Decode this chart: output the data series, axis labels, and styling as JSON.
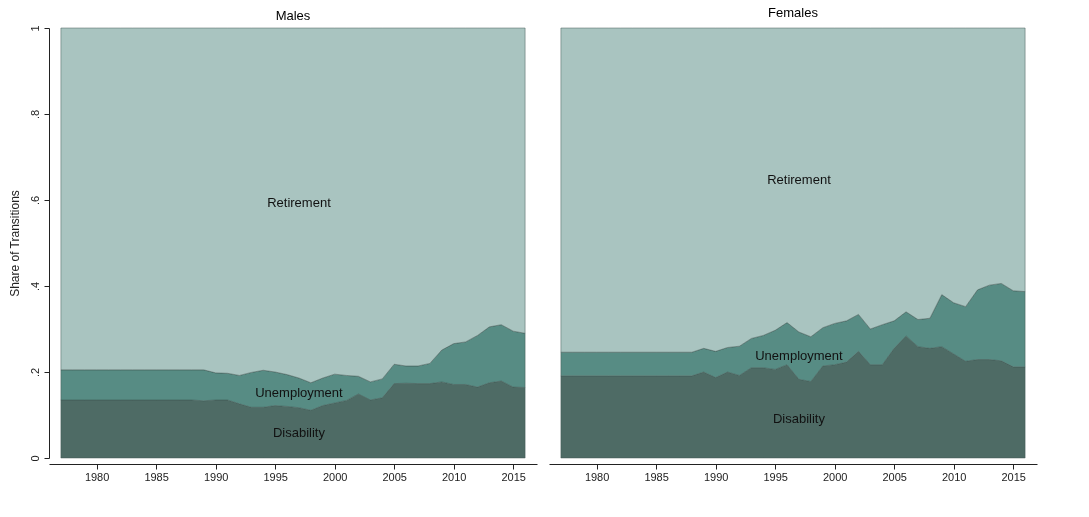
{
  "chart_data": [
    {
      "type": "area",
      "title": "Males",
      "ylabel": "Share of Transitions",
      "stacked": true,
      "legend": false,
      "tick_labels": "xy",
      "x": [
        1977,
        1978,
        1979,
        1980,
        1981,
        1982,
        1983,
        1984,
        1985,
        1986,
        1987,
        1988,
        1989,
        1990,
        1991,
        1992,
        1993,
        1994,
        1995,
        1996,
        1997,
        1998,
        1999,
        2000,
        2001,
        2002,
        2003,
        2004,
        2005,
        2006,
        2007,
        2008,
        2009,
        2010,
        2011,
        2012,
        2013,
        2014,
        2015,
        2016
      ],
      "xlim": [
        1976,
        2017
      ],
      "xticks": [
        1980,
        1985,
        1990,
        1995,
        2000,
        2005,
        2010,
        2015
      ],
      "ylim": [
        0,
        1
      ],
      "yticks": [
        0,
        {
          "value": 0.2,
          "label": ".2"
        },
        {
          "value": 0.4,
          "label": ".4"
        },
        {
          "value": 0.6,
          "label": ".6"
        },
        {
          "value": 0.8,
          "label": ".8"
        },
        1
      ],
      "series": [
        {
          "name": "Disability",
          "color": "#4e6b65",
          "values": [
            0.135,
            0.135,
            0.135,
            0.135,
            0.135,
            0.135,
            0.135,
            0.135,
            0.135,
            0.135,
            0.135,
            0.135,
            0.133,
            0.135,
            0.135,
            0.126,
            0.118,
            0.118,
            0.122,
            0.12,
            0.117,
            0.111,
            0.122,
            0.128,
            0.134,
            0.149,
            0.135,
            0.14,
            0.173,
            0.174,
            0.173,
            0.173,
            0.177,
            0.171,
            0.171,
            0.165,
            0.175,
            0.179,
            0.165,
            0.164
          ]
        },
        {
          "name": "Unemployment",
          "color": "#578c84",
          "values": [
            0.07,
            0.07,
            0.07,
            0.07,
            0.07,
            0.07,
            0.07,
            0.07,
            0.07,
            0.07,
            0.07,
            0.07,
            0.072,
            0.063,
            0.062,
            0.066,
            0.081,
            0.086,
            0.078,
            0.074,
            0.069,
            0.064,
            0.064,
            0.067,
            0.058,
            0.041,
            0.042,
            0.044,
            0.045,
            0.04,
            0.041,
            0.047,
            0.074,
            0.095,
            0.099,
            0.12,
            0.13,
            0.131,
            0.13,
            0.126
          ]
        },
        {
          "name": "Retirement",
          "color": "#a9c4c0",
          "values": [
            0.795,
            0.795,
            0.795,
            0.795,
            0.795,
            0.795,
            0.795,
            0.795,
            0.795,
            0.795,
            0.795,
            0.795,
            0.795,
            0.802,
            0.803,
            0.808,
            0.801,
            0.796,
            0.8,
            0.806,
            0.814,
            0.825,
            0.814,
            0.805,
            0.808,
            0.81,
            0.823,
            0.816,
            0.782,
            0.786,
            0.786,
            0.78,
            0.749,
            0.734,
            0.73,
            0.715,
            0.695,
            0.69,
            0.705,
            0.71
          ]
        }
      ]
    },
    {
      "type": "area",
      "title": "Females",
      "stacked": true,
      "legend": false,
      "tick_labels": "x",
      "x": [
        1977,
        1978,
        1979,
        1980,
        1981,
        1982,
        1983,
        1984,
        1985,
        1986,
        1987,
        1988,
        1989,
        1990,
        1991,
        1992,
        1993,
        1994,
        1995,
        1996,
        1997,
        1998,
        1999,
        2000,
        2001,
        2002,
        2003,
        2004,
        2005,
        2006,
        2007,
        2008,
        2009,
        2010,
        2011,
        2012,
        2013,
        2014,
        2015,
        2016
      ],
      "xlim": [
        1976,
        2017
      ],
      "xticks": [
        1980,
        1985,
        1990,
        1995,
        2000,
        2005,
        2010,
        2015
      ],
      "ylim": [
        0,
        1
      ],
      "series": [
        {
          "name": "Disability",
          "color": "#4e6b65",
          "values": [
            0.191,
            0.191,
            0.191,
            0.191,
            0.191,
            0.191,
            0.191,
            0.191,
            0.191,
            0.191,
            0.191,
            0.191,
            0.2,
            0.187,
            0.2,
            0.192,
            0.21,
            0.21,
            0.206,
            0.217,
            0.183,
            0.178,
            0.214,
            0.217,
            0.223,
            0.248,
            0.217,
            0.217,
            0.255,
            0.284,
            0.259,
            0.255,
            0.259,
            0.242,
            0.225,
            0.229,
            0.229,
            0.226,
            0.212,
            0.212
          ]
        },
        {
          "name": "Unemployment",
          "color": "#578c84",
          "values": [
            0.055,
            0.055,
            0.055,
            0.055,
            0.055,
            0.055,
            0.055,
            0.055,
            0.055,
            0.055,
            0.055,
            0.055,
            0.055,
            0.061,
            0.057,
            0.068,
            0.068,
            0.075,
            0.091,
            0.098,
            0.11,
            0.104,
            0.089,
            0.096,
            0.096,
            0.086,
            0.083,
            0.093,
            0.064,
            0.056,
            0.063,
            0.07,
            0.121,
            0.119,
            0.127,
            0.162,
            0.173,
            0.18,
            0.177,
            0.175
          ]
        },
        {
          "name": "Retirement",
          "color": "#a9c4c0",
          "values": [
            0.754,
            0.754,
            0.754,
            0.754,
            0.754,
            0.754,
            0.754,
            0.754,
            0.754,
            0.754,
            0.754,
            0.754,
            0.745,
            0.752,
            0.743,
            0.74,
            0.722,
            0.715,
            0.703,
            0.685,
            0.707,
            0.718,
            0.697,
            0.687,
            0.681,
            0.666,
            0.7,
            0.69,
            0.681,
            0.66,
            0.678,
            0.675,
            0.62,
            0.639,
            0.648,
            0.609,
            0.598,
            0.594,
            0.611,
            0.613
          ]
        }
      ]
    }
  ]
}
